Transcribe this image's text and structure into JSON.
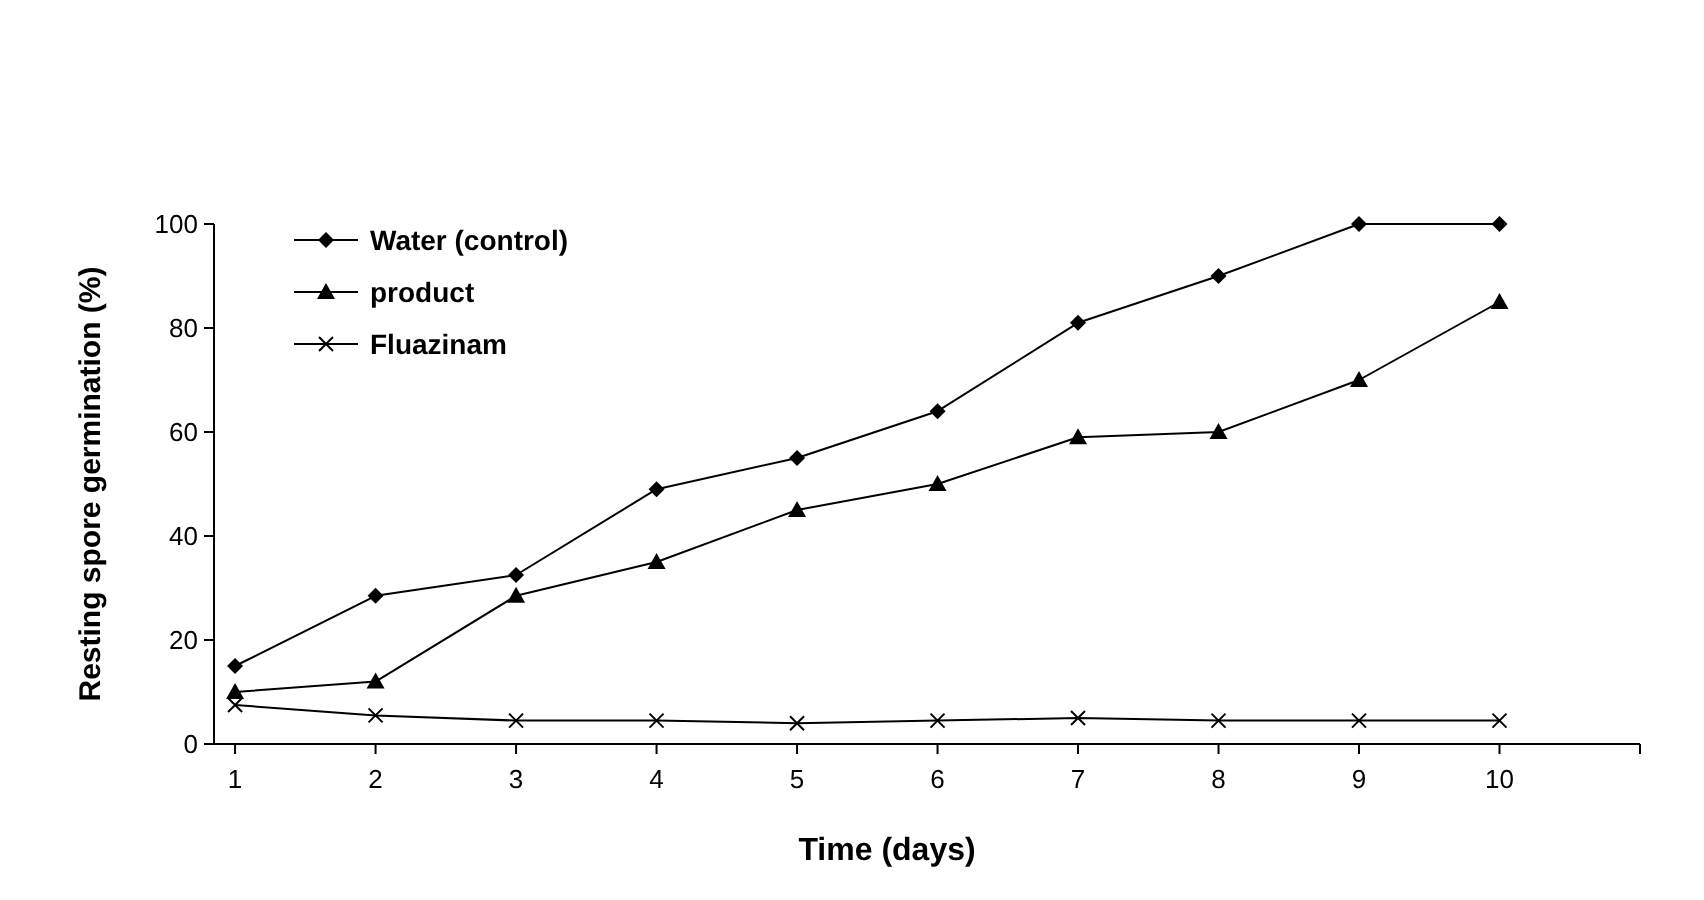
{
  "chart_data": {
    "type": "line",
    "xlabel": "Time (days)",
    "ylabel": "Resting spore germination (%)",
    "x": [
      1,
      2,
      3,
      4,
      5,
      6,
      7,
      8,
      9,
      10
    ],
    "xlim": [
      0.85,
      11
    ],
    "xticks": [
      1,
      2,
      3,
      4,
      5,
      6,
      7,
      8,
      9,
      10,
      {
        "value": 11,
        "label": null
      }
    ],
    "ylim": [
      0,
      100
    ],
    "yticks": [
      0,
      20,
      40,
      60,
      80,
      100
    ],
    "grid": false,
    "legend": "top left",
    "line_style": "solid",
    "series": [
      {
        "name": "Water (control)",
        "color": "#000000",
        "marker": "diamond",
        "values": [
          15,
          28.5,
          32.5,
          49,
          55,
          64,
          81,
          90,
          100,
          100
        ]
      },
      {
        "name": "product",
        "color": "#000000",
        "marker": "triangle",
        "values": [
          10,
          12,
          28.5,
          35,
          45,
          50,
          59,
          60,
          70,
          85
        ]
      },
      {
        "name": "Fluazinam",
        "color": "#000000",
        "marker": "cross",
        "values": [
          7.5,
          5.5,
          4.5,
          4.5,
          4,
          4.5,
          5,
          4.5,
          4.5,
          4.5
        ]
      }
    ]
  }
}
